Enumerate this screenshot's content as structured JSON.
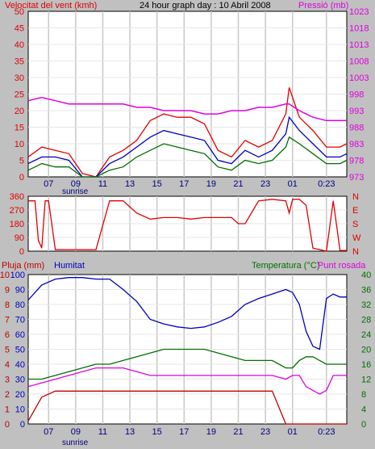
{
  "header": {
    "wind_label": "Velocitat del vent (kmh)",
    "title": "24 hour graph day : 10 Abril 2008",
    "pressure_label": "Pressió (mb)"
  },
  "colors": {
    "wind": "#e00000",
    "gust": "#0000c0",
    "wind_avg": "#007000",
    "pressure": "#e000e0",
    "direction": "#e00000",
    "rain": "#c00000",
    "humidity": "#0000c0",
    "temperature": "#007000",
    "dewpoint": "#e000e0",
    "background": "#ffffff",
    "frame": "#c0c0c0",
    "grid": "#c8c8c8"
  },
  "x_axis": {
    "ticks": [
      "07",
      "09",
      "11",
      "13",
      "15",
      "17",
      "19",
      "21",
      "23",
      "01",
      "0:23"
    ],
    "sunrise_label": "sunrise"
  },
  "bottom_panel": {
    "rain_label": "Pluja (mm)",
    "humidity_label": "Humitat",
    "temp_label": "Temperatura (°C)",
    "dew_label": "Punt rosada"
  },
  "chart_data": [
    {
      "type": "line",
      "title": "24 hour graph day : 10 Abril 2008",
      "x": [
        "05:30",
        "06:30",
        "07:30",
        "08:30",
        "09:30",
        "10:30",
        "11:30",
        "12:30",
        "13:30",
        "14:30",
        "15:30",
        "16:30",
        "17:30",
        "18:30",
        "19:30",
        "20:30",
        "21:30",
        "22:30",
        "23:30",
        "00:30",
        "00:45",
        "01:30",
        "02:30",
        "03:30",
        "04:30",
        "05:00"
      ],
      "xlabel": "",
      "ylabel_left": "Velocitat del vent (kmh)",
      "ylim_left": [
        0,
        50
      ],
      "yticks_left": [
        0,
        5,
        10,
        15,
        20,
        25,
        30,
        35,
        40,
        45,
        50
      ],
      "ylabel_right": "Pressió (mb)",
      "ylim_right": [
        973,
        1023
      ],
      "yticks_right": [
        973,
        978,
        983,
        988,
        993,
        998,
        1003,
        1008,
        1013,
        1018,
        1023
      ],
      "series": [
        {
          "name": "Velocitat del vent (kmh)",
          "axis": "left",
          "values": [
            6,
            9,
            8,
            7,
            1,
            0,
            6,
            8,
            11,
            17,
            19,
            18,
            18,
            16,
            8,
            6,
            11,
            9,
            11,
            19,
            27,
            18,
            14,
            9,
            9,
            10
          ]
        },
        {
          "axis": "left",
          "values": [
            4,
            6,
            6,
            5,
            0,
            0,
            4,
            6,
            9,
            12,
            14,
            13,
            12,
            11,
            5,
            4,
            8,
            6,
            8,
            13,
            18,
            14,
            10,
            6,
            6,
            7
          ]
        },
        {
          "axis": "left",
          "values": [
            2,
            4,
            3,
            3,
            0,
            0,
            2,
            3,
            6,
            8,
            10,
            9,
            8,
            7,
            3,
            2,
            5,
            4,
            5,
            9,
            12,
            10,
            7,
            4,
            4,
            5
          ]
        },
        {
          "name": "Pressió (mb)",
          "axis": "right",
          "values": [
            996,
            997,
            996,
            995,
            995,
            995,
            995,
            995,
            994,
            994,
            993,
            993,
            993,
            992,
            992,
            993,
            993,
            994,
            994,
            995,
            995,
            993,
            991,
            990,
            990,
            990
          ]
        }
      ],
      "grid": true
    },
    {
      "type": "line",
      "x": [
        "05:30",
        "06:00",
        "06:15",
        "06:30",
        "06:45",
        "07:00",
        "07:30",
        "08:30",
        "09:30",
        "10:30",
        "11:30",
        "12:30",
        "13:30",
        "14:30",
        "15:30",
        "16:30",
        "17:30",
        "18:30",
        "19:30",
        "20:30",
        "21:00",
        "21:30",
        "22:30",
        "23:30",
        "00:30",
        "00:45",
        "01:00",
        "01:30",
        "02:00",
        "02:30",
        "03:00",
        "03:30",
        "04:00",
        "04:30",
        "05:00"
      ],
      "ylim": [
        0,
        360
      ],
      "yticks": [
        0,
        90,
        180,
        270,
        360
      ],
      "ylabel_right": [
        "N",
        "W",
        "S",
        "E",
        "N"
      ],
      "series": [
        {
          "values": [
            330,
            330,
            70,
            20,
            330,
            330,
            10,
            10,
            10,
            10,
            330,
            330,
            250,
            210,
            220,
            220,
            210,
            220,
            220,
            220,
            180,
            180,
            330,
            340,
            330,
            250,
            340,
            340,
            300,
            20,
            10,
            0,
            330,
            5,
            5
          ]
        }
      ],
      "grid": true
    },
    {
      "type": "line",
      "x": [
        "05:30",
        "06:30",
        "07:30",
        "08:30",
        "09:30",
        "10:30",
        "11:30",
        "12:30",
        "13:30",
        "14:30",
        "15:30",
        "16:30",
        "17:30",
        "18:30",
        "19:30",
        "20:30",
        "21:30",
        "22:30",
        "23:30",
        "00:30",
        "01:00",
        "01:30",
        "02:00",
        "02:30",
        "03:00",
        "03:30",
        "04:00",
        "04:30",
        "05:00"
      ],
      "ylabel_left": "Pluja (mm)",
      "ylim_left": [
        0,
        10
      ],
      "yticks_left": [
        0,
        1,
        2,
        3,
        4,
        5,
        6,
        7,
        8,
        9,
        10
      ],
      "ylabel_left_2": "Humitat",
      "ylim_left_2": [
        0,
        100
      ],
      "yticks_left_2": [
        0,
        10,
        20,
        30,
        40,
        50,
        60,
        70,
        80,
        90,
        100
      ],
      "ylabel_right": "Temperatura (°C)",
      "ylabel_right_2": "Punt rosada",
      "ylim_right": [
        0,
        40
      ],
      "yticks_right": [
        0,
        4,
        8,
        12,
        16,
        20,
        24,
        28,
        32,
        36,
        40
      ],
      "series": [
        {
          "name": "Pluja (mm)",
          "axis": "left",
          "values": [
            0.2,
            1.8,
            2.2,
            2.2,
            2.2,
            2.2,
            2.2,
            2.2,
            2.2,
            2.2,
            2.2,
            2.2,
            2.2,
            2.2,
            2.2,
            2.2,
            2.2,
            2.2,
            2.2,
            0,
            0,
            0,
            0,
            0,
            0,
            0,
            0,
            0,
            0
          ]
        },
        {
          "name": "Humitat",
          "axis": "left_2",
          "values": [
            83,
            93,
            97,
            98,
            98,
            97,
            97,
            90,
            82,
            70,
            67,
            65,
            64,
            65,
            68,
            72,
            80,
            84,
            87,
            90,
            88,
            80,
            62,
            52,
            50,
            84,
            87,
            85,
            85
          ]
        },
        {
          "name": "Temperatura (°C)",
          "axis": "right",
          "values": [
            12,
            12,
            13,
            14,
            15,
            16,
            16,
            17,
            18,
            19,
            20,
            20,
            20,
            20,
            19,
            18,
            17,
            17,
            17,
            15,
            15,
            17,
            18,
            18,
            17,
            16,
            16,
            16,
            16
          ]
        },
        {
          "name": "Punt rosada",
          "axis": "right",
          "values": [
            10,
            11,
            12,
            13,
            14,
            15,
            15,
            15,
            14,
            13,
            13,
            13,
            13,
            13,
            13,
            13,
            13,
            13,
            13,
            12,
            13,
            13,
            10,
            9,
            8,
            9,
            13,
            13,
            13
          ]
        }
      ],
      "grid": true
    }
  ]
}
